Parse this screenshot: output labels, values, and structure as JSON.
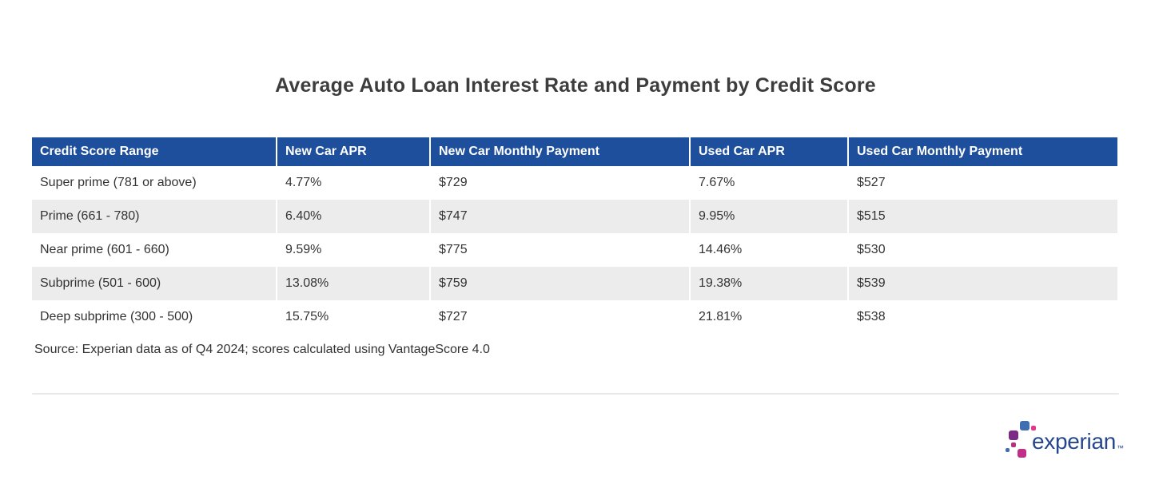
{
  "title": "Average Auto Loan Interest Rate and Payment by Credit Score",
  "source_note": "Source: Experian data as of Q4 2024; scores calculated using VantageScore 4.0",
  "chart_data": {
    "type": "table",
    "title": "Average Auto Loan Interest Rate and Payment by Credit Score",
    "columns": [
      "Credit Score Range",
      "New Car APR",
      "New Car Monthly Payment",
      "Used Car APR",
      "Used Car Monthly Payment"
    ],
    "rows": [
      [
        "Super prime (781 or above)",
        "4.77%",
        "$729",
        "7.67%",
        "$527"
      ],
      [
        "Prime (661 - 780)",
        "6.40%",
        "$747",
        "9.95%",
        "$515"
      ],
      [
        "Near prime (601 - 660)",
        "9.59%",
        "$775",
        "14.46%",
        "$530"
      ],
      [
        "Subprime (501 - 600)",
        "13.08%",
        "$759",
        "19.38%",
        "$539"
      ],
      [
        "Deep subprime (300 - 500)",
        "15.75%",
        "$727",
        "21.81%",
        "$538"
      ]
    ]
  },
  "logo": {
    "text": "experian",
    "trademark": "™",
    "dots": [
      {
        "name": "blue-square",
        "color": "#406eb3"
      },
      {
        "name": "pink-dot",
        "color": "#e63888"
      },
      {
        "name": "purple-square",
        "color": "#7d2a86"
      },
      {
        "name": "magenta-dot",
        "color": "#ba2f7d"
      },
      {
        "name": "blue-dot",
        "color": "#406eb3"
      },
      {
        "name": "magenta-square",
        "color": "#c22e87"
      }
    ]
  },
  "colors": {
    "header_bg": "#1e4f9c",
    "row_stripe": "#ececec",
    "cell_text": "#333333",
    "title_text": "#3d3d3d",
    "divider": "#e8e8e8",
    "logo_blue": "#26478d"
  }
}
